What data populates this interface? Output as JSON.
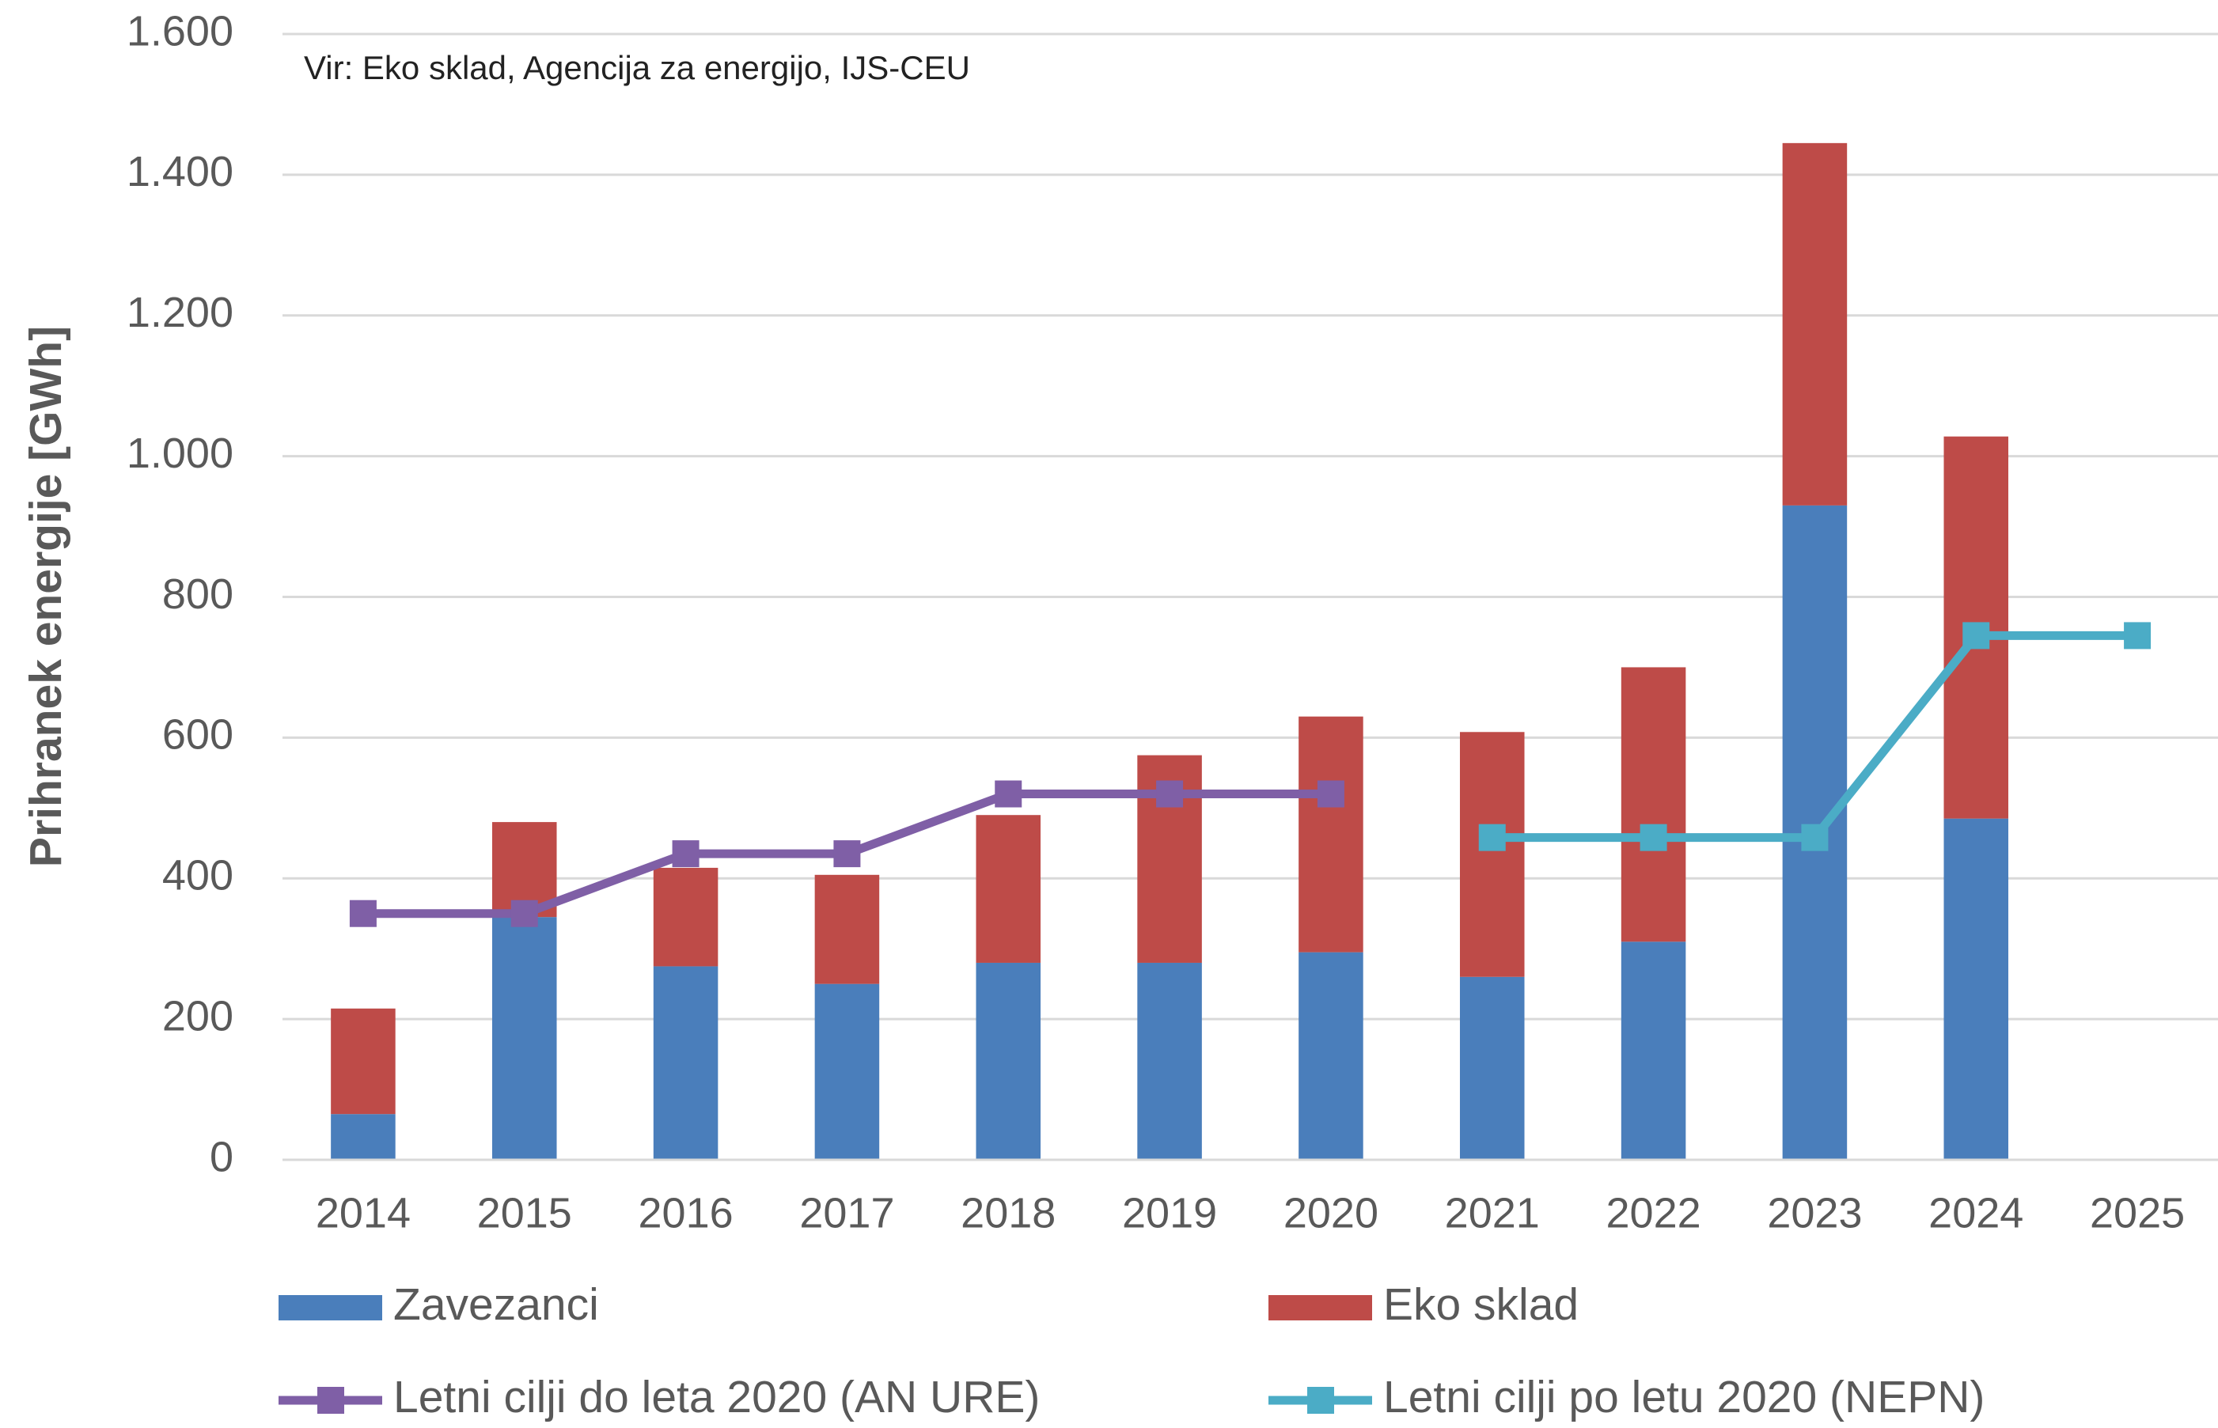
{
  "chart_data": {
    "type": "bar",
    "stacked": true,
    "y_label": "Prihranek energije [GWh]",
    "annotation": "Vir: Eko sklad, Agencija za energijo, IJS-CEU",
    "categories": [
      "2014",
      "2015",
      "2016",
      "2017",
      "2018",
      "2019",
      "2020",
      "2021",
      "2022",
      "2023",
      "2024",
      "2025"
    ],
    "series": [
      {
        "name": "Zavezanci",
        "type": "bar",
        "color": "#4a7ebb",
        "values": [
          65,
          345,
          275,
          250,
          280,
          280,
          295,
          260,
          310,
          930,
          485,
          null
        ]
      },
      {
        "name": "Eko sklad",
        "type": "bar",
        "color": "#be4b48",
        "values": [
          150,
          135,
          140,
          155,
          210,
          295,
          335,
          348,
          390,
          515,
          543,
          null
        ]
      },
      {
        "name": "Letni cilji do leta 2020 (AN URE)",
        "type": "line",
        "color": "#7f5fa6",
        "values": [
          350,
          350,
          435,
          435,
          520,
          520,
          520,
          null,
          null,
          null,
          null,
          null
        ]
      },
      {
        "name": "Letni cilji po letu 2020 (NEPN)",
        "type": "line",
        "color": "#4bacc6",
        "values": [
          null,
          null,
          null,
          null,
          null,
          null,
          null,
          458,
          458,
          458,
          745,
          745
        ]
      }
    ],
    "ylim": [
      0,
      1600
    ],
    "yticks": [
      0,
      200,
      400,
      600,
      800,
      {
        "value": 1000,
        "label": "1.000"
      },
      {
        "value": 1200,
        "label": "1.200"
      },
      {
        "value": 1400,
        "label": "1.400"
      },
      {
        "value": 1600,
        "label": "1.600"
      }
    ],
    "grid": true,
    "legend": "bottom"
  }
}
